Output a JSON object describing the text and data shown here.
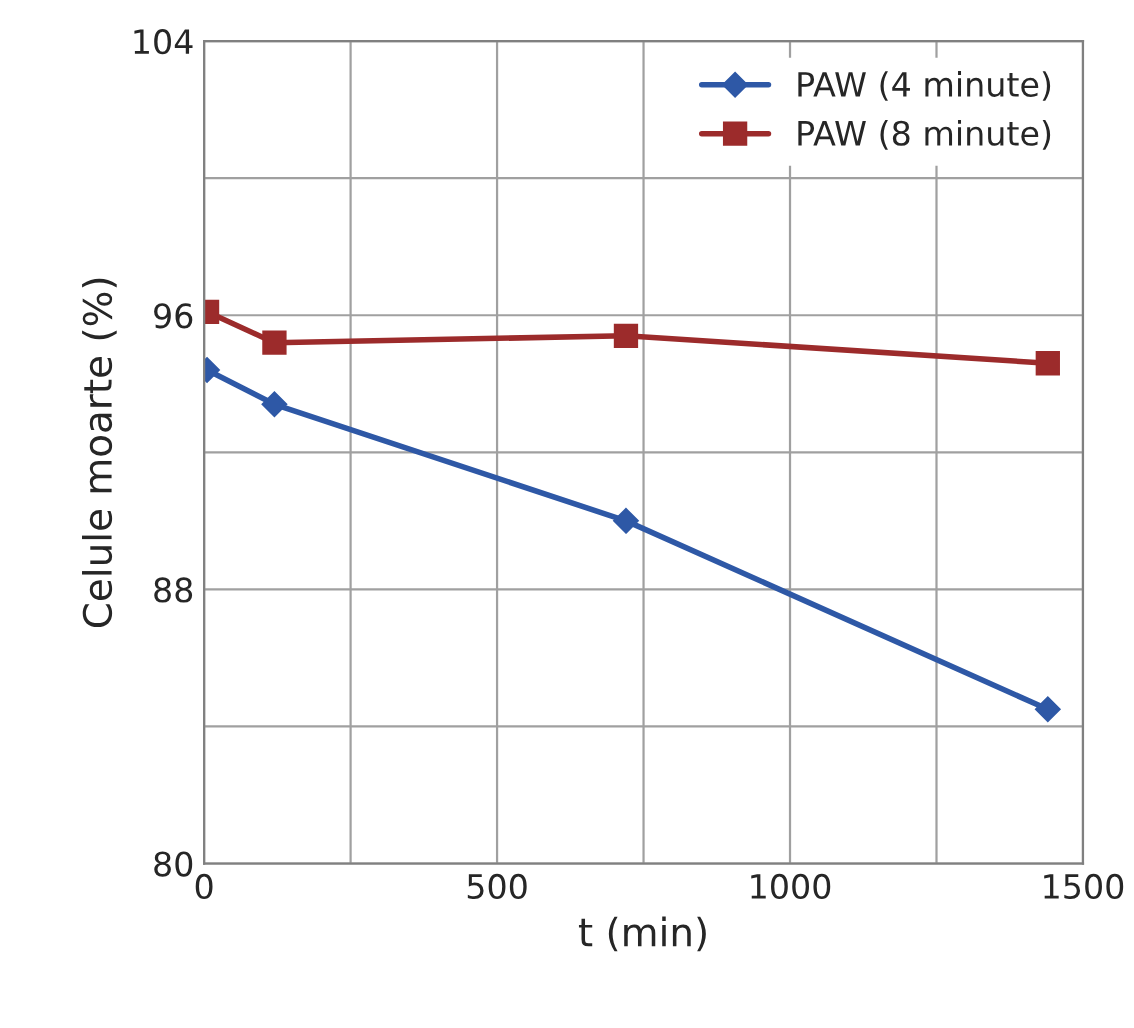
{
  "chart_data": {
    "type": "line",
    "xlabel": "t (min)",
    "ylabel": "Celule moarte (%)",
    "series": [
      {
        "name": "PAW (4 minute)",
        "color": "#2e58a6",
        "marker": "diamond",
        "x": [
          5,
          120,
          720,
          1440
        ],
        "values": [
          94.4,
          93.4,
          90.0,
          84.5
        ]
      },
      {
        "name": "PAW (8 minute)",
        "color": "#9c2b2b",
        "marker": "square",
        "x": [
          5,
          120,
          720,
          1440
        ],
        "values": [
          96.1,
          95.2,
          95.4,
          94.6
        ]
      }
    ],
    "xlim": [
      0,
      1500
    ],
    "xticks": [
      0,
      {
        "value": 250,
        "label": null
      },
      500,
      {
        "value": 750,
        "label": null
      },
      1000,
      {
        "value": 1250,
        "label": null
      },
      1500
    ],
    "ylim": [
      80,
      104
    ],
    "yticks": [
      80,
      {
        "value": 84,
        "label": null
      },
      88,
      {
        "value": 92,
        "label": null
      },
      96,
      {
        "value": 100,
        "label": null
      },
      104
    ],
    "grid": true,
    "legend": "top right",
    "line_style": "solid"
  }
}
